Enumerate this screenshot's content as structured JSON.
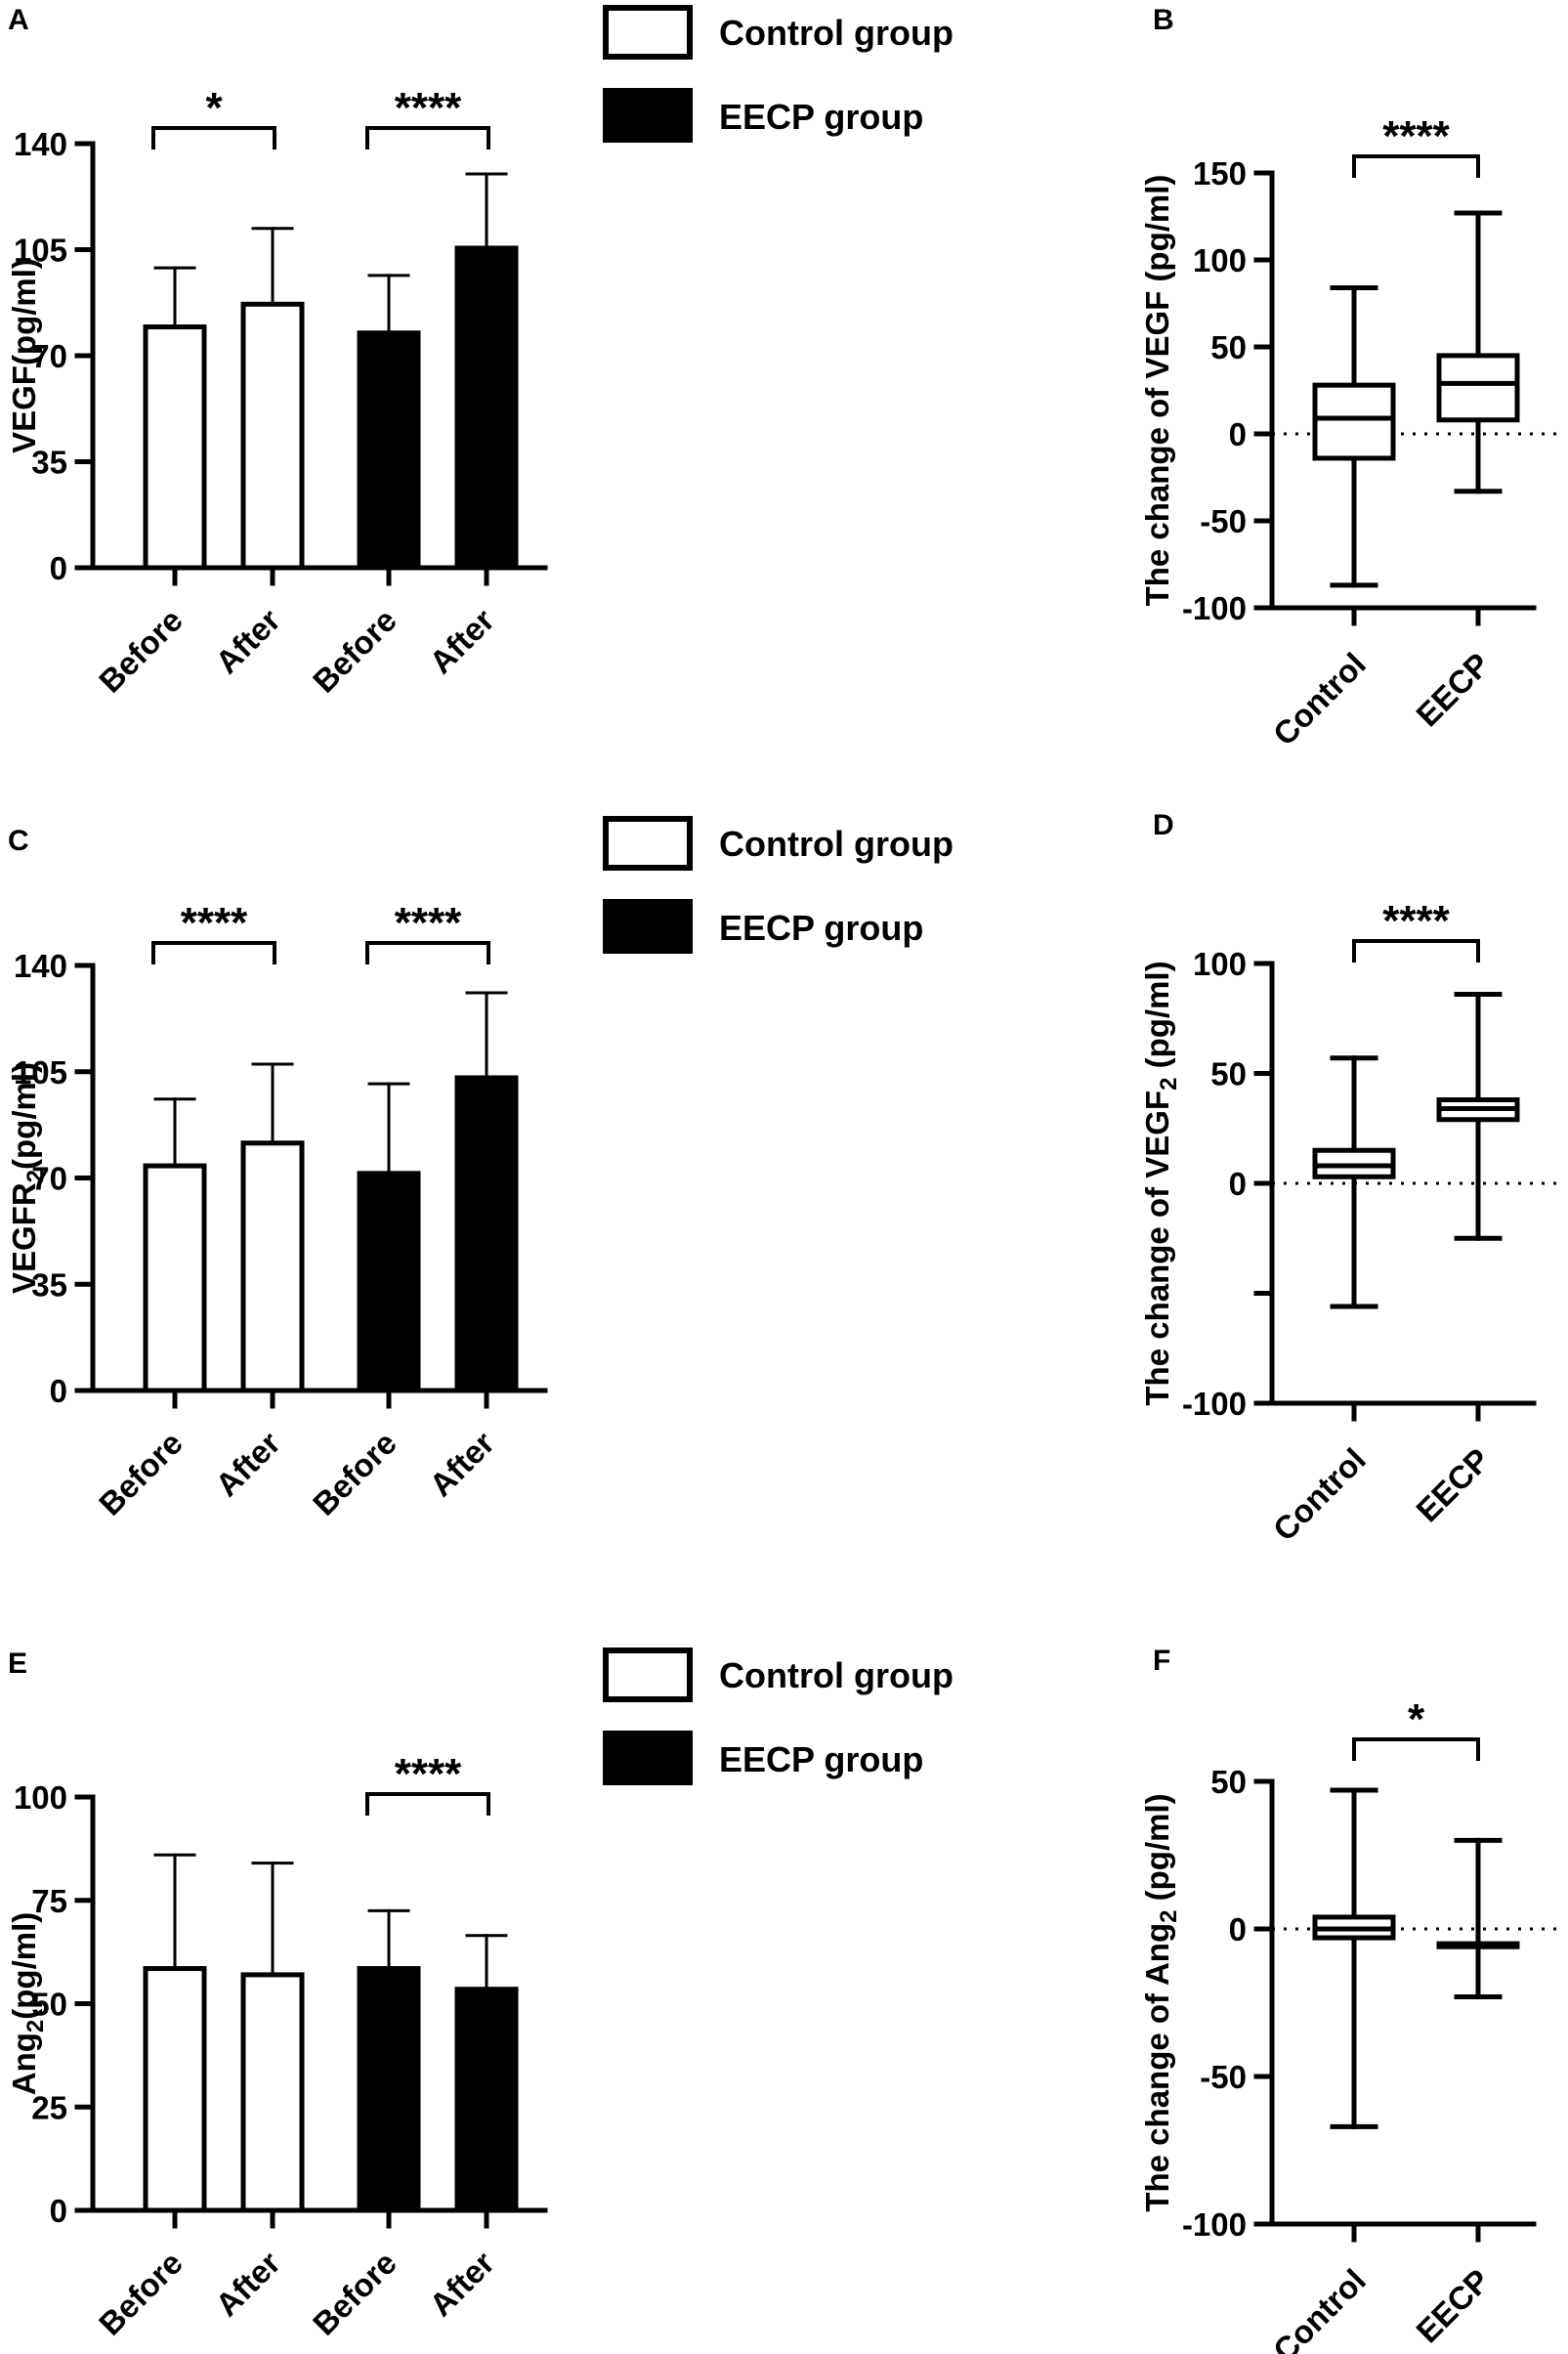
{
  "colors": {
    "control": "#ffffff",
    "eecp": "#000000",
    "stroke": "#000000",
    "background": "#ffffff"
  },
  "chart_data": [
    {
      "panel": "A",
      "type": "bar",
      "categories": [
        "Before",
        "After",
        "Before",
        "After"
      ],
      "groups": [
        "control",
        "control",
        "eecp",
        "eecp"
      ],
      "values": [
        79.5,
        87,
        77.5,
        105.5
      ],
      "errors": [
        19.5,
        25,
        19,
        24.5
      ],
      "ylabel": "VEGF(pg/ml)",
      "ylabel_sub": "",
      "ylim": [
        0,
        140
      ],
      "yticks": [
        0,
        35,
        70,
        105,
        140
      ],
      "brackets": [
        {
          "from": 0,
          "to": 1,
          "label": "*"
        },
        {
          "from": 2,
          "to": 3,
          "label": "****"
        }
      ],
      "legend": [
        "Control group",
        "EECP group"
      ]
    },
    {
      "panel": "B",
      "type": "box",
      "categories": [
        "Control",
        "EECP"
      ],
      "boxes": [
        {
          "min": -87,
          "q1": -14,
          "median": 9,
          "q3": 28,
          "max": 84
        },
        {
          "min": -33,
          "q1": 8,
          "median": 29,
          "q3": 45,
          "max": 127
        }
      ],
      "ylabel": "The change of VEGF (pg/ml)",
      "ylabel_parts": [
        "The change of VEGF (pg/ml)"
      ],
      "ylim": [
        -100,
        150
      ],
      "yticks": [
        -100,
        -50,
        0,
        50,
        100,
        150
      ],
      "ytick_labels": [
        "-100",
        "-50",
        "0",
        "50",
        "100",
        "150"
      ],
      "reference_line": 0,
      "bracket": {
        "from": 0,
        "to": 1,
        "label": "****"
      }
    },
    {
      "panel": "C",
      "type": "bar",
      "categories": [
        "Before",
        "After",
        "Before",
        "After"
      ],
      "groups": [
        "control",
        "control",
        "eecp",
        "eecp"
      ],
      "values": [
        74,
        81.5,
        71.5,
        103
      ],
      "errors": [
        22,
        26,
        29.5,
        28
      ],
      "ylabel": "VEGFR(pg/ml)",
      "ylabel_main": "VEGFR",
      "ylabel_sub": "2",
      "ylabel_tail": "(pg/ml)",
      "ylim": [
        0,
        140
      ],
      "yticks": [
        0,
        35,
        70,
        105,
        140
      ],
      "brackets": [
        {
          "from": 0,
          "to": 1,
          "label": "****"
        },
        {
          "from": 2,
          "to": 3,
          "label": "****"
        }
      ],
      "legend": [
        "Control group",
        "EECP group"
      ]
    },
    {
      "panel": "D",
      "type": "box",
      "categories": [
        "Control",
        "EECP"
      ],
      "boxes": [
        {
          "min": -56,
          "q1": 3,
          "median": 8,
          "q3": 15,
          "max": 57
        },
        {
          "min": -25,
          "q1": 29,
          "median": 34,
          "q3": 38,
          "max": 86
        }
      ],
      "ylabel": "The change of VEGF2 (pg/ml)",
      "ylabel_parts": [
        "The change of VEGF",
        "2",
        " (pg/ml)"
      ],
      "ylim": [
        -100,
        100
      ],
      "yticks": [
        -100,
        -50,
        0,
        50,
        100
      ],
      "ytick_labels": [
        "-100",
        "",
        "0",
        "50",
        "100"
      ],
      "reference_line": 0,
      "bracket": {
        "from": 0,
        "to": 1,
        "label": "****"
      }
    },
    {
      "panel": "E",
      "type": "bar",
      "categories": [
        "Before",
        "After",
        "Before",
        "After"
      ],
      "groups": [
        "control",
        "control",
        "eecp",
        "eecp"
      ],
      "values": [
        58.5,
        57,
        58.5,
        53.5
      ],
      "errors": [
        27.5,
        27,
        14,
        13
      ],
      "ylabel": "Ang(pg/ml)",
      "ylabel_main": "Ang",
      "ylabel_sub": "2",
      "ylabel_tail": "(pg/ml)",
      "ylim": [
        0,
        100
      ],
      "yticks": [
        0,
        25,
        50,
        75,
        100
      ],
      "brackets": [
        {
          "from": 2,
          "to": 3,
          "label": "****"
        }
      ],
      "legend": [
        "Control group",
        "EECP group"
      ]
    },
    {
      "panel": "F",
      "type": "box",
      "categories": [
        "Control",
        "EECP"
      ],
      "boxes": [
        {
          "min": -67,
          "q1": -3,
          "median": 0,
          "q3": 4,
          "max": 47
        },
        {
          "min": -23,
          "q1": -6,
          "median": -6,
          "q3": -5,
          "max": 30
        }
      ],
      "ylabel": "The change of Ang2 (pg/ml)",
      "ylabel_parts": [
        "The change of Ang",
        "2",
        " (pg/ml)"
      ],
      "ylim": [
        -100,
        50
      ],
      "yticks": [
        -100,
        -50,
        0,
        50
      ],
      "ytick_labels": [
        "-100",
        "-50",
        "0",
        "50"
      ],
      "reference_line": 0,
      "bracket": {
        "from": 0,
        "to": 1,
        "label": "*"
      }
    }
  ]
}
